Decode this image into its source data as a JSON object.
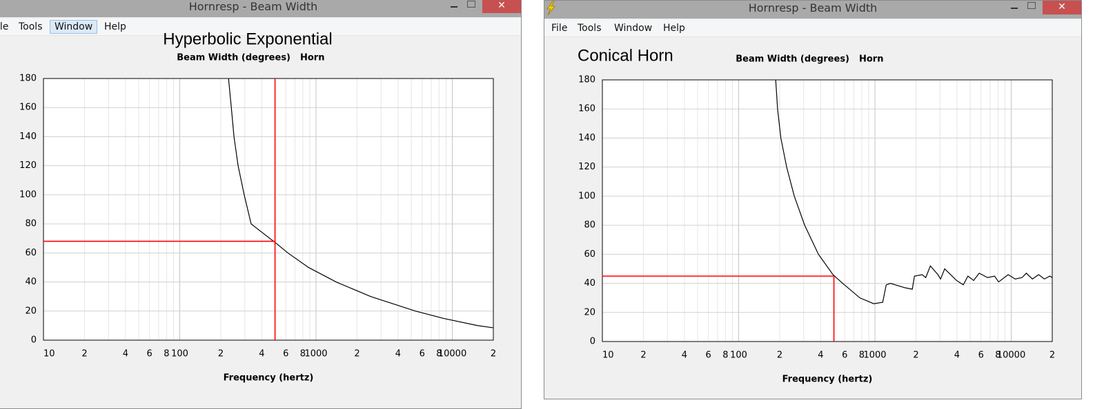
{
  "windows": [
    {
      "title": "Hornresp - Beam Width",
      "menu": [
        "File",
        "Tools",
        "Window",
        "Help"
      ]
    },
    {
      "title": "Hornresp - Beam Width",
      "menu": [
        "File",
        "Tools",
        "Window",
        "Help"
      ]
    }
  ],
  "chart_data": [
    {
      "type": "line",
      "annotation": "Hyperbolic Exponential",
      "title": "Beam Width (degrees)",
      "xlabel": "Frequency (hertz)",
      "log_x": true,
      "grid": true,
      "minor_grid": true,
      "xlim": [
        10,
        20000
      ],
      "ylim": [
        0,
        180
      ],
      "xticks": [
        10,
        {
          "value": 20,
          "label": "2"
        },
        {
          "value": 40,
          "label": "4"
        },
        {
          "value": 60,
          "label": "6"
        },
        {
          "value": 80,
          "label": "8"
        },
        100,
        {
          "value": 200,
          "label": "2"
        },
        {
          "value": 400,
          "label": "4"
        },
        {
          "value": 600,
          "label": "6"
        },
        {
          "value": 800,
          "label": "8"
        },
        1000,
        {
          "value": 2000,
          "label": "2"
        },
        {
          "value": 4000,
          "label": "4"
        },
        {
          "value": 6000,
          "label": "6"
        },
        {
          "value": 8000,
          "label": "8"
        },
        10000,
        {
          "value": 20000,
          "label": "2"
        }
      ],
      "yticks": [
        0,
        20,
        40,
        60,
        80,
        100,
        120,
        140,
        160,
        180
      ],
      "series": [
        {
          "name": "Horn",
          "color": "#000000",
          "x": [
            228,
            239,
            250,
            268,
            297,
            334,
            355,
            504,
            621,
            881,
            1406,
            2520,
            5370,
            8570,
            15350,
            20000
          ],
          "values": [
            180,
            160,
            140,
            120,
            100,
            80,
            78,
            67,
            60,
            50,
            40,
            30,
            20,
            15,
            10,
            8.5
          ]
        }
      ],
      "cursor": {
        "x": 500,
        "y": 68,
        "color": "#ff0000",
        "span": "full"
      }
    },
    {
      "type": "line",
      "annotation": "Conical Horn",
      "title": "Beam Width (degrees)",
      "xlabel": "Frequency (hertz)",
      "log_x": true,
      "grid": true,
      "minor_grid": true,
      "xlim": [
        10,
        20000
      ],
      "ylim": [
        0,
        180
      ],
      "xticks": [
        10,
        {
          "value": 20,
          "label": "2"
        },
        {
          "value": 40,
          "label": "4"
        },
        {
          "value": 60,
          "label": "6"
        },
        {
          "value": 80,
          "label": "8"
        },
        100,
        {
          "value": 200,
          "label": "2"
        },
        {
          "value": 400,
          "label": "4"
        },
        {
          "value": 600,
          "label": "6"
        },
        {
          "value": 800,
          "label": "8"
        },
        1000,
        {
          "value": 2000,
          "label": "2"
        },
        {
          "value": 4000,
          "label": "4"
        },
        {
          "value": 6000,
          "label": "6"
        },
        {
          "value": 8000,
          "label": "8"
        },
        10000,
        {
          "value": 20000,
          "label": "2"
        }
      ],
      "yticks": [
        0,
        20,
        40,
        60,
        80,
        100,
        120,
        140,
        160,
        180
      ],
      "series": [
        {
          "name": "Horn",
          "color": "#000000",
          "x": [
            187,
            193,
            204,
            225,
            256,
            305,
            385,
            492,
            580,
            776,
            980,
            1140,
            1210,
            1300,
            1660,
            1880,
            1950,
            2220,
            2360,
            2550,
            2900,
            3030,
            3250,
            3970,
            4450,
            4810,
            5300,
            5820,
            6700,
            7550,
            8080,
            9500,
            10700,
            12000,
            12900,
            14300,
            15900,
            17500,
            19200,
            20000
          ],
          "values": [
            180,
            160,
            140,
            120,
            100,
            80,
            60,
            46,
            40,
            30,
            26,
            27,
            39,
            40,
            37,
            36,
            45,
            46,
            44,
            52,
            46,
            43,
            50,
            42,
            39,
            45,
            42,
            47,
            44,
            45,
            41,
            46,
            43,
            44,
            47,
            43,
            46,
            43,
            45,
            44
          ]
        }
      ],
      "cursor": {
        "x": 500,
        "y": 45,
        "color": "#ff0000",
        "span": "to-point"
      }
    }
  ]
}
